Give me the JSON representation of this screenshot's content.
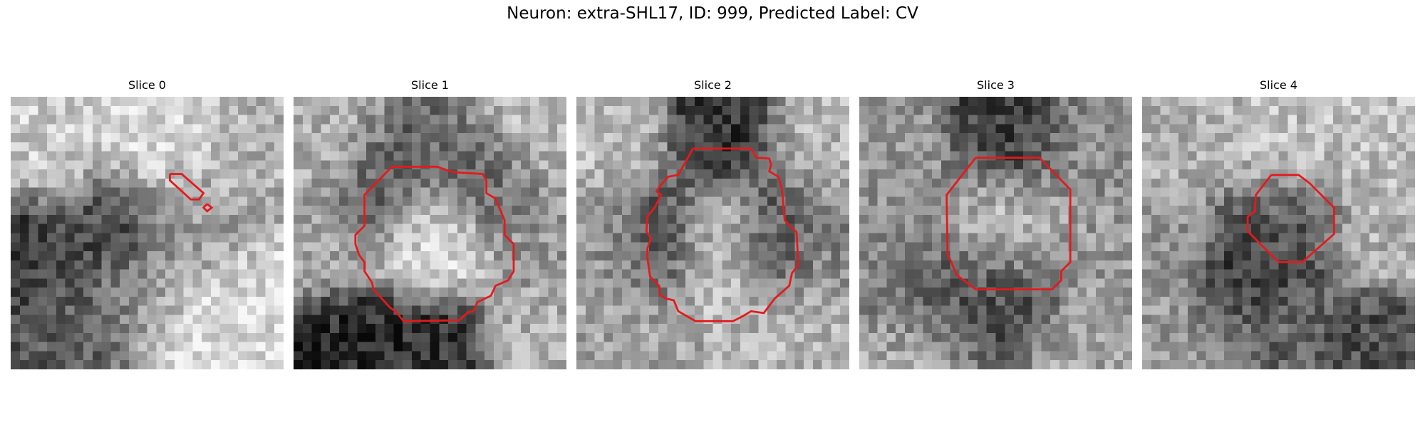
{
  "figure": {
    "title": "Neuron: extra-SHL17, ID: 999, Predicted Label: CV",
    "contour_color": "#e41a1c"
  },
  "panels": [
    {
      "title": "Slice 0",
      "image_icon": "grayscale-em-patch",
      "contour_present": true,
      "contour_shape": "small-elongated-sliver"
    },
    {
      "title": "Slice 1",
      "image_icon": "grayscale-em-patch",
      "contour_present": true,
      "contour_shape": "large-irregular-blob"
    },
    {
      "title": "Slice 2",
      "image_icon": "grayscale-em-patch",
      "contour_present": true,
      "contour_shape": "large-irregular-blob"
    },
    {
      "title": "Slice 3",
      "image_icon": "grayscale-em-patch",
      "contour_present": true,
      "contour_shape": "octagon"
    },
    {
      "title": "Slice 4",
      "image_icon": "grayscale-em-patch",
      "contour_present": true,
      "contour_shape": "small-octagon"
    }
  ]
}
